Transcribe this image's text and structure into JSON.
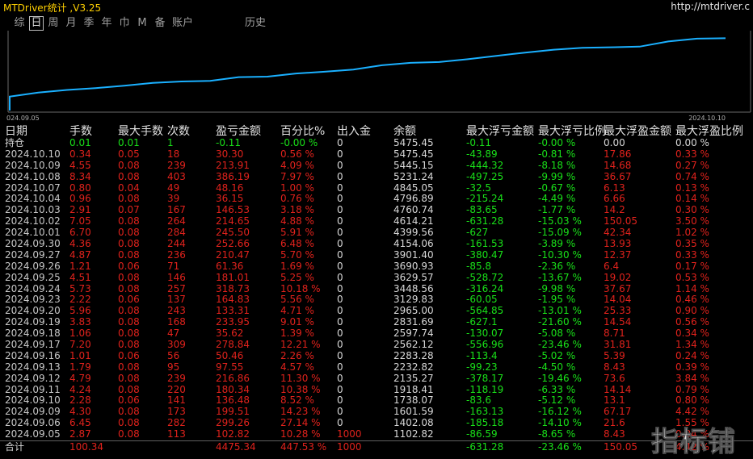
{
  "app": {
    "title": "MTDriver统计 ,V3.25",
    "url": "http://mtdriver.c"
  },
  "tabs": [
    {
      "label": "综",
      "active": false
    },
    {
      "label": "日",
      "active": true
    },
    {
      "label": "周",
      "active": false
    },
    {
      "label": "月",
      "active": false
    },
    {
      "label": "季",
      "active": false
    },
    {
      "label": "年",
      "active": false
    },
    {
      "label": "巾",
      "active": false
    },
    {
      "label": "M",
      "active": false
    },
    {
      "label": "备",
      "active": false
    },
    {
      "label": "账户",
      "active": false
    }
  ],
  "history_tab": "历史",
  "chart_data": {
    "type": "line",
    "x_start_label": "024.09.05",
    "x_end_label": "2024.10.10",
    "x": [
      "2024.09.05",
      "2024.09.06",
      "2024.09.09",
      "2024.09.10",
      "2024.09.11",
      "2024.09.12",
      "2024.09.13",
      "2024.09.16",
      "2024.09.17",
      "2024.09.18",
      "2024.09.19",
      "2024.09.20",
      "2024.09.23",
      "2024.09.24",
      "2024.09.25",
      "2024.09.26",
      "2024.09.27",
      "2024.09.30",
      "2024.10.01",
      "2024.10.02",
      "2024.10.03",
      "2024.10.04",
      "2024.10.07",
      "2024.10.08",
      "2024.10.09",
      "2024.10.10"
    ],
    "values": [
      1102.82,
      1402.08,
      1601.59,
      1738.07,
      1918.41,
      2135.27,
      2232.82,
      2283.28,
      2562.12,
      2597.74,
      2831.69,
      2965.0,
      3129.83,
      3448.56,
      3629.57,
      3690.93,
      3901.4,
      4154.06,
      4399.56,
      4614.21,
      4760.74,
      4796.89,
      4845.05,
      5231.24,
      5445.15,
      5475.45
    ],
    "color": "#1ab0ff"
  },
  "table": {
    "headers": [
      "日期",
      "手数",
      "最大手数",
      "次数",
      "盈亏金额",
      "百分比%",
      "出入金",
      "余额",
      "最大浮亏金额",
      "最大浮亏比例",
      "最大浮盈金额",
      "最大浮盈比例"
    ],
    "position": {
      "label": "持仓",
      "lots": "0.01",
      "max_lots": "0.01",
      "count": "1",
      "pnl": "-0.11",
      "pct": "-0.00 %",
      "flow": "0",
      "balance": "5475.45",
      "max_dd": "-0.11",
      "max_dd_pct": "-0.00 %",
      "max_fp": "0.00",
      "max_fp_pct": "0.00 %"
    },
    "rows": [
      {
        "date": "2024.10.10",
        "lots": "0.34",
        "max_lots": "0.05",
        "count": "18",
        "pnl": "30.30",
        "pct": "0.56 %",
        "flow": "0",
        "balance": "5475.45",
        "max_dd": "-43.89",
        "max_dd_pct": "-0.81 %",
        "max_fp": "17.86",
        "max_fp_pct": "0.33 %"
      },
      {
        "date": "2024.10.09",
        "lots": "4.55",
        "max_lots": "0.08",
        "count": "239",
        "pnl": "213.91",
        "pct": "4.09 %",
        "flow": "0",
        "balance": "5445.15",
        "max_dd": "-444.32",
        "max_dd_pct": "-8.18 %",
        "max_fp": "14.68",
        "max_fp_pct": "0.27 %"
      },
      {
        "date": "2024.10.08",
        "lots": "8.34",
        "max_lots": "0.08",
        "count": "403",
        "pnl": "386.19",
        "pct": "7.97 %",
        "flow": "0",
        "balance": "5231.24",
        "max_dd": "-497.25",
        "max_dd_pct": "-9.99 %",
        "max_fp": "36.67",
        "max_fp_pct": "0.74 %"
      },
      {
        "date": "2024.10.07",
        "lots": "0.80",
        "max_lots": "0.04",
        "count": "49",
        "pnl": "48.16",
        "pct": "1.00 %",
        "flow": "0",
        "balance": "4845.05",
        "max_dd": "-32.5",
        "max_dd_pct": "-0.67 %",
        "max_fp": "6.13",
        "max_fp_pct": "0.13 %"
      },
      {
        "date": "2024.10.04",
        "lots": "0.96",
        "max_lots": "0.08",
        "count": "39",
        "pnl": "36.15",
        "pct": "0.76 %",
        "flow": "0",
        "balance": "4796.89",
        "max_dd": "-215.24",
        "max_dd_pct": "-4.49 %",
        "max_fp": "6.66",
        "max_fp_pct": "0.14 %"
      },
      {
        "date": "2024.10.03",
        "lots": "2.91",
        "max_lots": "0.07",
        "count": "167",
        "pnl": "146.53",
        "pct": "3.18 %",
        "flow": "0",
        "balance": "4760.74",
        "max_dd": "-83.65",
        "max_dd_pct": "-1.77 %",
        "max_fp": "14.2",
        "max_fp_pct": "0.30 %"
      },
      {
        "date": "2024.10.02",
        "lots": "7.05",
        "max_lots": "0.08",
        "count": "264",
        "pnl": "214.65",
        "pct": "4.88 %",
        "flow": "0",
        "balance": "4614.21",
        "max_dd": "-631.28",
        "max_dd_pct": "-15.03 %",
        "max_fp": "150.05",
        "max_fp_pct": "3.50 %"
      },
      {
        "date": "2024.10.01",
        "lots": "6.70",
        "max_lots": "0.08",
        "count": "284",
        "pnl": "245.50",
        "pct": "5.91 %",
        "flow": "0",
        "balance": "4399.56",
        "max_dd": "-627",
        "max_dd_pct": "-15.09 %",
        "max_fp": "42.34",
        "max_fp_pct": "1.02 %"
      },
      {
        "date": "2024.09.30",
        "lots": "4.36",
        "max_lots": "0.08",
        "count": "244",
        "pnl": "252.66",
        "pct": "6.48 %",
        "flow": "0",
        "balance": "4154.06",
        "max_dd": "-161.53",
        "max_dd_pct": "-3.89 %",
        "max_fp": "13.93",
        "max_fp_pct": "0.35 %"
      },
      {
        "date": "2024.09.27",
        "lots": "4.87",
        "max_lots": "0.08",
        "count": "236",
        "pnl": "210.47",
        "pct": "5.70 %",
        "flow": "0",
        "balance": "3901.40",
        "max_dd": "-380.47",
        "max_dd_pct": "-10.30 %",
        "max_fp": "12.37",
        "max_fp_pct": "0.33 %"
      },
      {
        "date": "2024.09.26",
        "lots": "1.21",
        "max_lots": "0.06",
        "count": "71",
        "pnl": "61.36",
        "pct": "1.69 %",
        "flow": "0",
        "balance": "3690.93",
        "max_dd": "-85.8",
        "max_dd_pct": "-2.36 %",
        "max_fp": "6.4",
        "max_fp_pct": "0.17 %"
      },
      {
        "date": "2024.09.25",
        "lots": "4.51",
        "max_lots": "0.08",
        "count": "146",
        "pnl": "181.01",
        "pct": "5.25 %",
        "flow": "0",
        "balance": "3629.57",
        "max_dd": "-528.72",
        "max_dd_pct": "-13.67 %",
        "max_fp": "19.02",
        "max_fp_pct": "0.53 %"
      },
      {
        "date": "2024.09.24",
        "lots": "5.73",
        "max_lots": "0.08",
        "count": "257",
        "pnl": "318.73",
        "pct": "10.18 %",
        "flow": "0",
        "balance": "3448.56",
        "max_dd": "-316.24",
        "max_dd_pct": "-9.98 %",
        "max_fp": "37.67",
        "max_fp_pct": "1.14 %"
      },
      {
        "date": "2024.09.23",
        "lots": "2.22",
        "max_lots": "0.06",
        "count": "137",
        "pnl": "164.83",
        "pct": "5.56 %",
        "flow": "0",
        "balance": "3129.83",
        "max_dd": "-60.05",
        "max_dd_pct": "-1.95 %",
        "max_fp": "14.04",
        "max_fp_pct": "0.46 %"
      },
      {
        "date": "2024.09.20",
        "lots": "5.96",
        "max_lots": "0.08",
        "count": "243",
        "pnl": "133.31",
        "pct": "4.71 %",
        "flow": "0",
        "balance": "2965.00",
        "max_dd": "-564.85",
        "max_dd_pct": "-13.01 %",
        "max_fp": "25.33",
        "max_fp_pct": "0.90 %"
      },
      {
        "date": "2024.09.19",
        "lots": "3.83",
        "max_lots": "0.08",
        "count": "168",
        "pnl": "233.95",
        "pct": "9.01 %",
        "flow": "0",
        "balance": "2831.69",
        "max_dd": "-627.1",
        "max_dd_pct": "-21.60 %",
        "max_fp": "14.54",
        "max_fp_pct": "0.56 %"
      },
      {
        "date": "2024.09.18",
        "lots": "1.06",
        "max_lots": "0.08",
        "count": "47",
        "pnl": "35.62",
        "pct": "1.39 %",
        "flow": "0",
        "balance": "2597.74",
        "max_dd": "-130.07",
        "max_dd_pct": "-5.08 %",
        "max_fp": "8.71",
        "max_fp_pct": "0.34 %"
      },
      {
        "date": "2024.09.17",
        "lots": "7.20",
        "max_lots": "0.08",
        "count": "309",
        "pnl": "278.84",
        "pct": "12.21 %",
        "flow": "0",
        "balance": "2562.12",
        "max_dd": "-556.96",
        "max_dd_pct": "-23.46 %",
        "max_fp": "31.81",
        "max_fp_pct": "1.34 %"
      },
      {
        "date": "2024.09.16",
        "lots": "1.01",
        "max_lots": "0.06",
        "count": "56",
        "pnl": "50.46",
        "pct": "2.26 %",
        "flow": "0",
        "balance": "2283.28",
        "max_dd": "-113.4",
        "max_dd_pct": "-5.02 %",
        "max_fp": "5.39",
        "max_fp_pct": "0.24 %"
      },
      {
        "date": "2024.09.13",
        "lots": "1.79",
        "max_lots": "0.08",
        "count": "95",
        "pnl": "97.55",
        "pct": "4.57 %",
        "flow": "0",
        "balance": "2232.82",
        "max_dd": "-99.23",
        "max_dd_pct": "-4.50 %",
        "max_fp": "8.43",
        "max_fp_pct": "0.39 %"
      },
      {
        "date": "2024.09.12",
        "lots": "4.79",
        "max_lots": "0.08",
        "count": "239",
        "pnl": "216.86",
        "pct": "11.30 %",
        "flow": "0",
        "balance": "2135.27",
        "max_dd": "-378.17",
        "max_dd_pct": "-19.46 %",
        "max_fp": "73.6",
        "max_fp_pct": "3.84 %"
      },
      {
        "date": "2024.09.11",
        "lots": "4.24",
        "max_lots": "0.08",
        "count": "220",
        "pnl": "180.34",
        "pct": "10.38 %",
        "flow": "0",
        "balance": "1918.41",
        "max_dd": "-118.19",
        "max_dd_pct": "-6.33 %",
        "max_fp": "14.14",
        "max_fp_pct": "0.79 %"
      },
      {
        "date": "2024.09.10",
        "lots": "2.28",
        "max_lots": "0.06",
        "count": "141",
        "pnl": "136.48",
        "pct": "8.52 %",
        "flow": "0",
        "balance": "1738.07",
        "max_dd": "-83.6",
        "max_dd_pct": "-5.12 %",
        "max_fp": "13.1",
        "max_fp_pct": "0.80 %"
      },
      {
        "date": "2024.09.09",
        "lots": "4.30",
        "max_lots": "0.08",
        "count": "173",
        "pnl": "199.51",
        "pct": "14.23 %",
        "flow": "0",
        "balance": "1601.59",
        "max_dd": "-163.13",
        "max_dd_pct": "-16.12 %",
        "max_fp": "67.17",
        "max_fp_pct": "4.42 %"
      },
      {
        "date": "2024.09.06",
        "lots": "6.45",
        "max_lots": "0.08",
        "count": "282",
        "pnl": "299.26",
        "pct": "27.14 %",
        "flow": "0",
        "balance": "1402.08",
        "max_dd": "-185.18",
        "max_dd_pct": "-14.10 %",
        "max_fp": "21.6",
        "max_fp_pct": "1.55 %"
      },
      {
        "date": "2024.09.05",
        "lots": "2.87",
        "max_lots": "0.08",
        "count": "113",
        "pnl": "102.82",
        "pct": "10.28 %",
        "flow": "1000",
        "balance": "1102.82",
        "max_dd": "-86.59",
        "max_dd_pct": "-8.65 %",
        "max_fp": "8.43",
        "max_fp_pct": "0.84 %"
      }
    ],
    "total": {
      "label": "合计",
      "lots": "100.34",
      "max_lots": "",
      "count": "",
      "pnl": "4475.34",
      "pct": "447.53 %",
      "flow": "1000",
      "balance": "",
      "max_dd": "-631.28",
      "max_dd_pct": "-23.46 %",
      "max_fp": "150.05",
      "max_fp_pct": "4.42 %"
    }
  },
  "watermark": "指标铺"
}
